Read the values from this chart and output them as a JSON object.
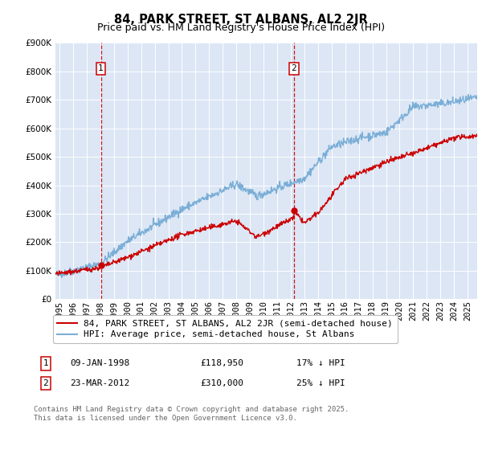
{
  "title": "84, PARK STREET, ST ALBANS, AL2 2JR",
  "subtitle": "Price paid vs. HM Land Registry's House Price Index (HPI)",
  "ylim": [
    0,
    900000
  ],
  "yticks": [
    0,
    100000,
    200000,
    300000,
    400000,
    500000,
    600000,
    700000,
    800000,
    900000
  ],
  "xlim_start": 1994.7,
  "xlim_end": 2025.7,
  "xticks": [
    1995,
    1996,
    1997,
    1998,
    1999,
    2000,
    2001,
    2002,
    2003,
    2004,
    2005,
    2006,
    2007,
    2008,
    2009,
    2010,
    2011,
    2012,
    2013,
    2014,
    2015,
    2016,
    2017,
    2018,
    2019,
    2020,
    2021,
    2022,
    2023,
    2024,
    2025
  ],
  "bg_color": "#dce6f5",
  "grid_color": "#ffffff",
  "red_line_color": "#cc0000",
  "blue_line_color": "#7aaed6",
  "vline_color": "#cc0000",
  "marker1_date": 1998.04,
  "marker1_value": 118950,
  "marker2_date": 2012.22,
  "marker2_value": 310000,
  "legend_label_red": "84, PARK STREET, ST ALBANS, AL2 2JR (semi-detached house)",
  "legend_label_blue": "HPI: Average price, semi-detached house, St Albans",
  "annotation1_num": "1",
  "annotation1_date": "09-JAN-1998",
  "annotation1_price": "£118,950",
  "annotation1_hpi": "17% ↓ HPI",
  "annotation2_num": "2",
  "annotation2_date": "23-MAR-2012",
  "annotation2_price": "£310,000",
  "annotation2_hpi": "25% ↓ HPI",
  "footer": "Contains HM Land Registry data © Crown copyright and database right 2025.\nThis data is licensed under the Open Government Licence v3.0.",
  "title_fontsize": 10.5,
  "subtitle_fontsize": 9,
  "tick_fontsize": 7.5,
  "legend_fontsize": 8,
  "annotation_fontsize": 8,
  "footer_fontsize": 6.5
}
